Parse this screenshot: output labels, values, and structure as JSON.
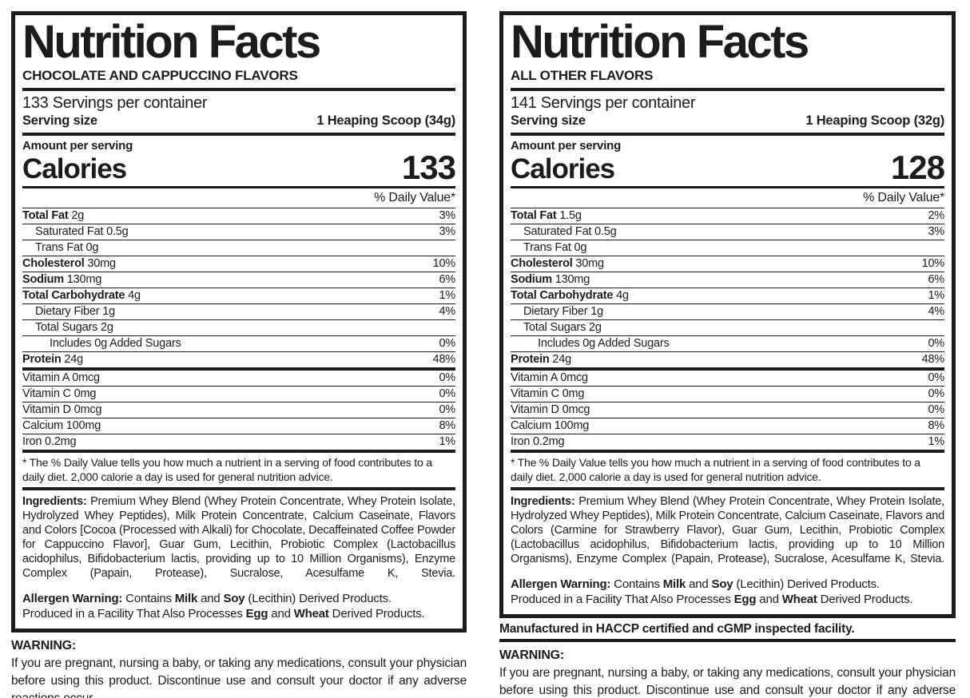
{
  "colors": {
    "ink": "#1d1c1a",
    "paper": "#ffffff"
  },
  "left_label": {
    "title": "Nutrition Facts",
    "flavor": "CHOCOLATE AND CAPPUCCINO FLAVORS",
    "servings": "133 Servings per container",
    "serving_size_label": "Serving size",
    "serving_size_value": "1 Heaping Scoop (34g)",
    "amount_per_serving": "Amount per serving",
    "calories_word": "Calories",
    "calories_value": "133",
    "dv_header": "% Daily Value*",
    "rows": [
      {
        "b": "Total Fat",
        "t": " 2g",
        "dv": "3%"
      },
      {
        "b": "",
        "t": "Saturated Fat 0.5g",
        "dv": "3%"
      },
      {
        "b": "",
        "t": "Trans Fat 0g",
        "dv": ""
      },
      {
        "b": "Cholesterol",
        "t": " 30mg",
        "dv": "10%"
      },
      {
        "b": "Sodium",
        "t": " 130mg",
        "dv": "6%"
      },
      {
        "b": "Total Carbohydrate",
        "t": " 4g",
        "dv": "1%"
      },
      {
        "b": "",
        "t": "Dietary Fiber 1g",
        "dv": "4%"
      },
      {
        "b": "",
        "t": "Total Sugars 2g",
        "dv": ""
      },
      {
        "b": "",
        "t": "Includes 0g Added Sugars",
        "dv": "0%"
      },
      {
        "b": "Protein",
        "t": " 24g",
        "dv": "48%"
      }
    ],
    "micros": [
      {
        "b": "",
        "t": "Vitamin A 0mcg",
        "dv": "0%"
      },
      {
        "b": "",
        "t": "Vitamin C 0mg",
        "dv": "0%"
      },
      {
        "b": "",
        "t": "Vitamin D 0mcg",
        "dv": "0%"
      },
      {
        "b": "",
        "t": "Calcium 100mg",
        "dv": "8%"
      },
      {
        "b": "",
        "t": "Iron 0.2mg",
        "dv": "1%"
      }
    ],
    "footnote": "* The % Daily Value tells you how much a nutrient in a serving of food contributes to a daily diet. 2,000 calorie a day is used for general nutrition advice.",
    "ingredients_lead": "Ingredients:",
    "ingredients_body": " Premium Whey Blend (Whey Protein Concentrate, Whey Protein Isolate, Hydrolyzed Whey Peptides), Milk Protein Concentrate, Calcium Caseinate, Flavors and Colors [Cocoa (Processed with Alkali) for Chocolate, Decaffeinated Coffee Powder for Cappuccino Flavor], Guar Gum, Lecithin, Probiotic Complex (Lactobacillus acidophilus, Bifidobacterium lactis, providing up to 10 Million Organisms), Enzyme Complex (Papain, Protease), Sucralose, Acesulfame K, Stevia.",
    "allergen": {
      "lead": "Allergen Warning:",
      "s1": " Contains ",
      "milk": "Milk",
      "and1": " and ",
      "soy": "Soy",
      "s2": " (Lecithin) Derived Products.",
      "line2_pre": "Produced in a Facility That Also Processes ",
      "egg": "Egg",
      "and2": " and ",
      "wheat": "Wheat",
      "s3": " Derived Products."
    },
    "warning_heading": "WARNING:",
    "warning_body": "If you are pregnant, nursing a baby, or taking any medications, consult your physician before using this product. Discontinue use and consult your doctor if any adverse reactions occur."
  },
  "right_label": {
    "title": "Nutrition Facts",
    "flavor": "ALL OTHER FLAVORS",
    "servings": "141 Servings per container",
    "serving_size_label": "Serving size",
    "serving_size_value": "1 Heaping Scoop (32g)",
    "amount_per_serving": "Amount per serving",
    "calories_word": "Calories",
    "calories_value": "128",
    "dv_header": "% Daily Value*",
    "rows": [
      {
        "b": "Total Fat",
        "t": " 1.5g",
        "dv": "2%"
      },
      {
        "b": "",
        "t": "Saturated Fat 0.5g",
        "dv": "3%"
      },
      {
        "b": "",
        "t": "Trans Fat 0g",
        "dv": ""
      },
      {
        "b": "Cholesterol",
        "t": " 30mg",
        "dv": "10%"
      },
      {
        "b": "Sodium",
        "t": " 130mg",
        "dv": "6%"
      },
      {
        "b": "Total Carbohydrate",
        "t": " 4g",
        "dv": "1%"
      },
      {
        "b": "",
        "t": "Dietary Fiber 1g",
        "dv": "4%"
      },
      {
        "b": "",
        "t": "Total Sugars 2g",
        "dv": ""
      },
      {
        "b": "",
        "t": "Includes 0g Added Sugars",
        "dv": "0%"
      },
      {
        "b": "Protein",
        "t": " 24g",
        "dv": "48%"
      }
    ],
    "micros": [
      {
        "b": "",
        "t": "Vitamin A 0mcg",
        "dv": "0%"
      },
      {
        "b": "",
        "t": "Vitamin C 0mg",
        "dv": "0%"
      },
      {
        "b": "",
        "t": "Vitamin D 0mcg",
        "dv": "0%"
      },
      {
        "b": "",
        "t": "Calcium 100mg",
        "dv": "8%"
      },
      {
        "b": "",
        "t": "Iron 0.2mg",
        "dv": "1%"
      }
    ],
    "footnote": "* The % Daily Value tells you how much a nutrient in a serving of food contributes to a daily diet. 2,000 calorie a day is used for general nutrition advice.",
    "ingredients_lead": "Ingredients:",
    "ingredients_body": " Premium Whey Blend (Whey Protein Concentrate, Whey Protein Isolate, Hydrolyzed Whey Peptides), Milk Protein Concentrate, Calcium Caseinate, Flavors and Colors (Carmine for Strawberry Flavor), Guar Gum, Lecithin, Probiotic Complex (Lactobacillus acidophilus, Bifidobacterium lactis, providing up to 10 Million Organisms), Enzyme Complex (Papain, Protease), Sucralose, Acesulfame K, Stevia.",
    "allergen": {
      "lead": "Allergen Warning:",
      "s1": " Contains ",
      "milk": "Milk",
      "and1": " and ",
      "soy": "Soy",
      "s2": " (Lecithin) Derived Products.",
      "line2_pre": "Produced in a Facility That Also Processes ",
      "egg": "Egg",
      "and2": " and ",
      "wheat": "Wheat",
      "s3": " Derived Products."
    },
    "manufactured": "Manufactured in HACCP certified and cGMP inspected facility.",
    "warning_heading": "WARNING:",
    "warning_body": "If you are pregnant, nursing a baby, or taking any medications, consult your physician before using this product. Discontinue use and consult your doctor if any adverse reactions occur."
  }
}
